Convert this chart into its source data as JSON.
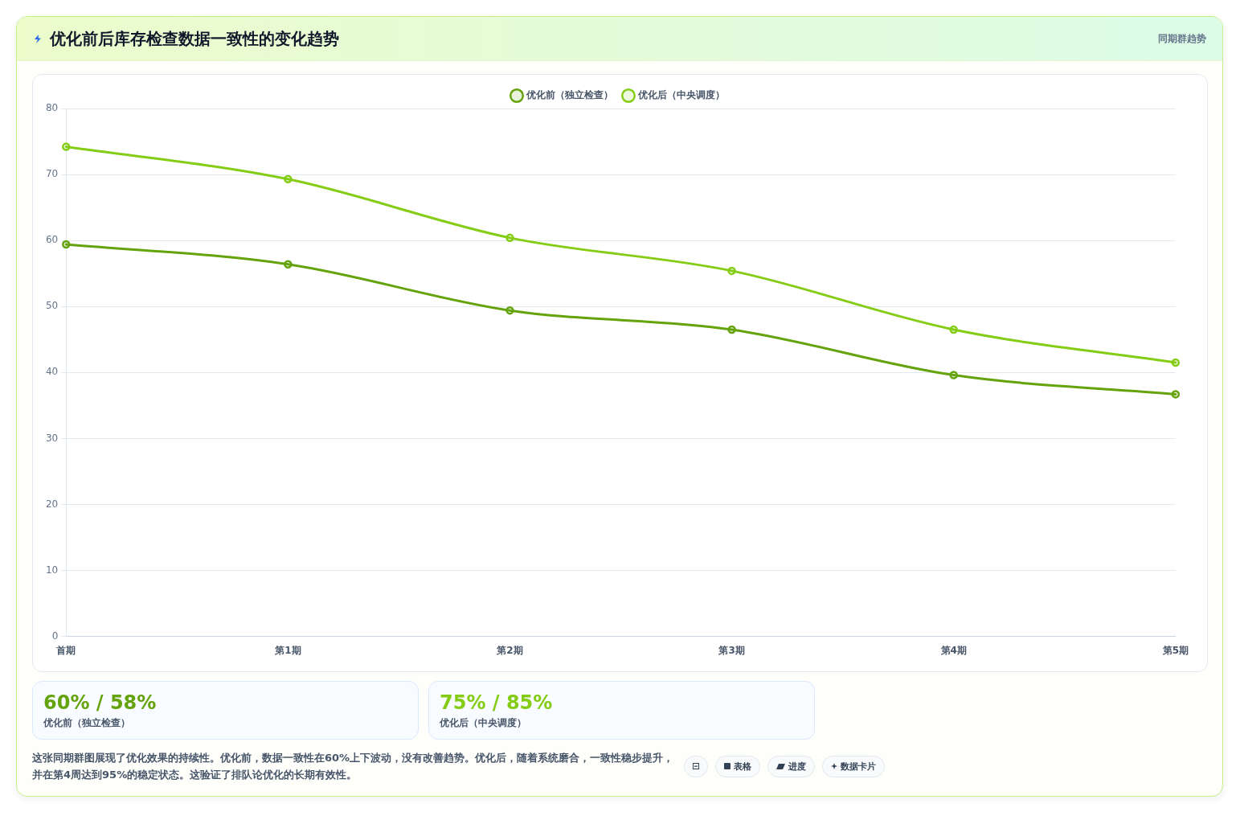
{
  "chart_data": {
    "type": "line",
    "title": "优化前后库存检查数据一致性的变化趋势",
    "subtitle": "同期群趋势",
    "categories": [
      "首期",
      "第1期",
      "第2期",
      "第3期",
      "第4期",
      "第5期"
    ],
    "series": [
      {
        "name": "优化前（独立检查）",
        "color": "#65a30d",
        "values": [
          59.4,
          56.4,
          49.4,
          46.5,
          39.6,
          36.7
        ]
      },
      {
        "name": "优化后（中央调度）",
        "color": "#84cc16",
        "values": [
          74.2,
          69.3,
          60.4,
          55.4,
          46.5,
          41.5
        ]
      }
    ],
    "ylim": [
      0,
      80
    ],
    "yticks": [
      0,
      10,
      20,
      30,
      40,
      50,
      60,
      70,
      80
    ],
    "grid": "y",
    "legend": "top",
    "marker": "circle",
    "annotations": [
      "60% / 58%",
      "75% / 85%",
      "这张同期群图展现了优化效果的持续性。优化前，数据一致性在60%上下波动，没有改善趋势。优化后，随着系统磨合，一致性稳步提升，并在第4周达到95%的稳定状态。这验证了排队论优化的长期有效性。",
      "表格",
      "进度",
      "数据卡片"
    ]
  }
}
